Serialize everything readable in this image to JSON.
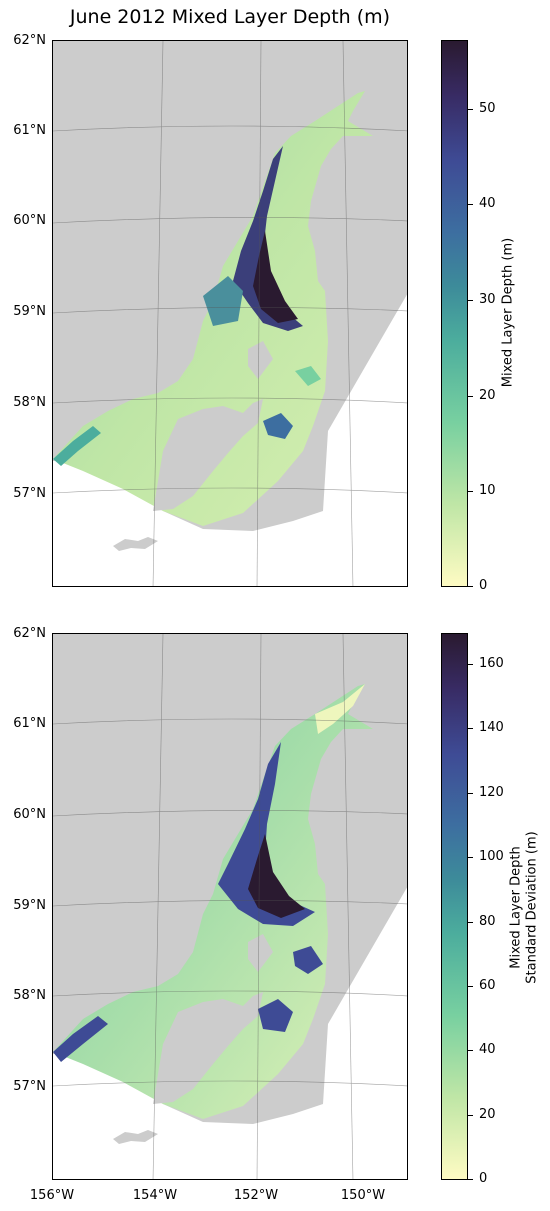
{
  "title": "June 2012 Mixed Layer Depth (m)",
  "lat_labels": [
    "62°N",
    "61°N",
    "60°N",
    "59°N",
    "58°N",
    "57°N"
  ],
  "lon_labels": [
    "156°W",
    "154°W",
    "152°W",
    "150°W"
  ],
  "colors": {
    "land": "#cccccc",
    "gridline": "#555555",
    "colormap_low": "#fefbc3",
    "colormap_mid": "#4cad9d",
    "colormap_high": "#2a1a30"
  },
  "panels": [
    {
      "colorbar_label": "Mixed Layer Depth (m)",
      "colorbar_ticks": [
        "0",
        "10",
        "20",
        "30",
        "40",
        "50"
      ],
      "colorbar_range": [
        0,
        57
      ]
    },
    {
      "colorbar_label_line1": "Mixed Layer Depth",
      "colorbar_label_line2": "Standard Deviation (m)",
      "colorbar_ticks": [
        "0",
        "20",
        "40",
        "60",
        "80",
        "100",
        "120",
        "140",
        "160"
      ],
      "colorbar_range": [
        0,
        170
      ]
    }
  ]
}
